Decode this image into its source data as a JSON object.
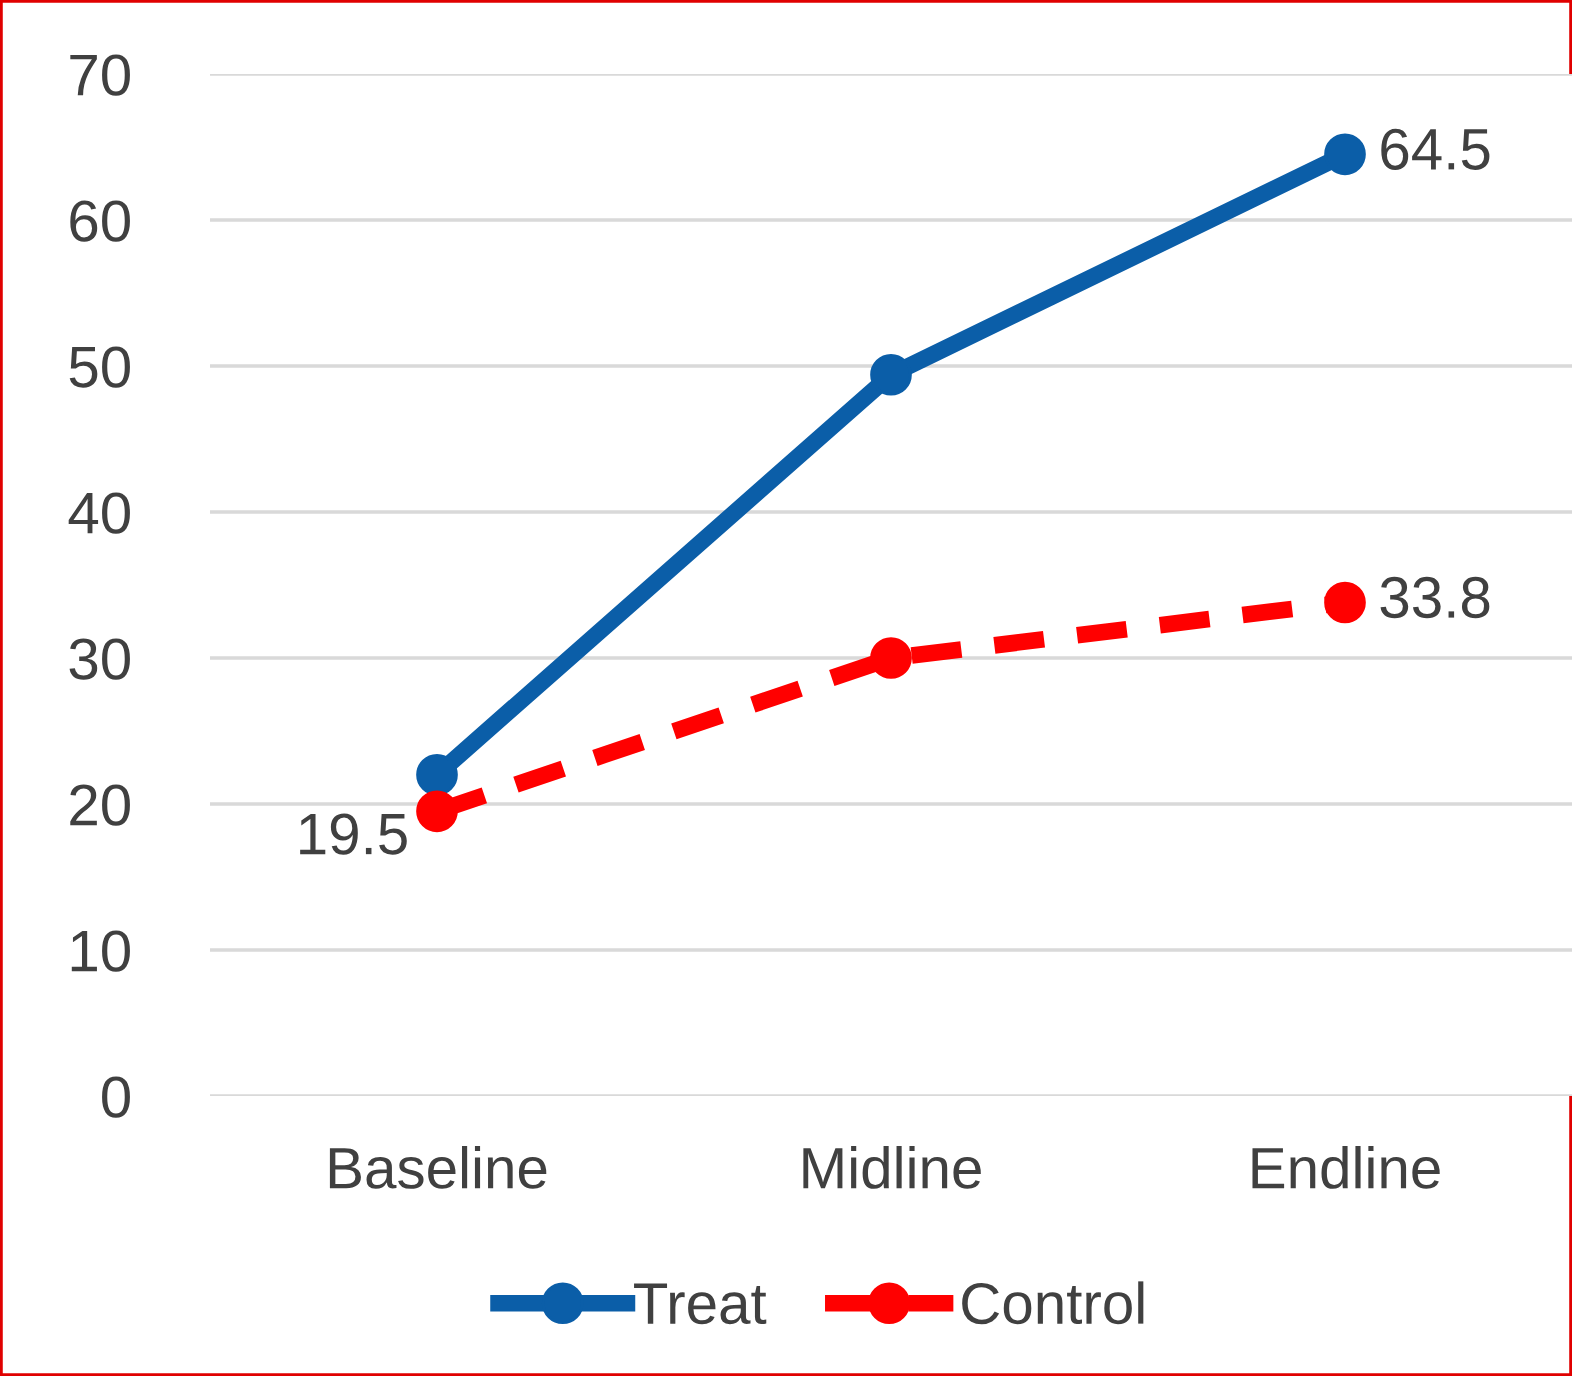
{
  "chart_data": {
    "type": "line",
    "categories": [
      "Baseline",
      "Midline",
      "Endline"
    ],
    "series": [
      {
        "name": "Treat",
        "color": "#0b5ea8",
        "values": [
          22,
          49.4,
          64.5
        ],
        "value_labels": [
          null,
          null,
          "64.5"
        ],
        "line_style": "solid"
      },
      {
        "name": "Control",
        "color": "#ff0000",
        "values": [
          19.5,
          30,
          33.8
        ],
        "value_labels": [
          "19.5",
          null,
          "33.8"
        ],
        "line_style": "dashed"
      }
    ],
    "ylim": [
      0,
      70
    ],
    "yticks": [
      0,
      10,
      20,
      30,
      40,
      50,
      60,
      70
    ],
    "grid": "y",
    "legend": "bottom",
    "marker": "circle"
  }
}
